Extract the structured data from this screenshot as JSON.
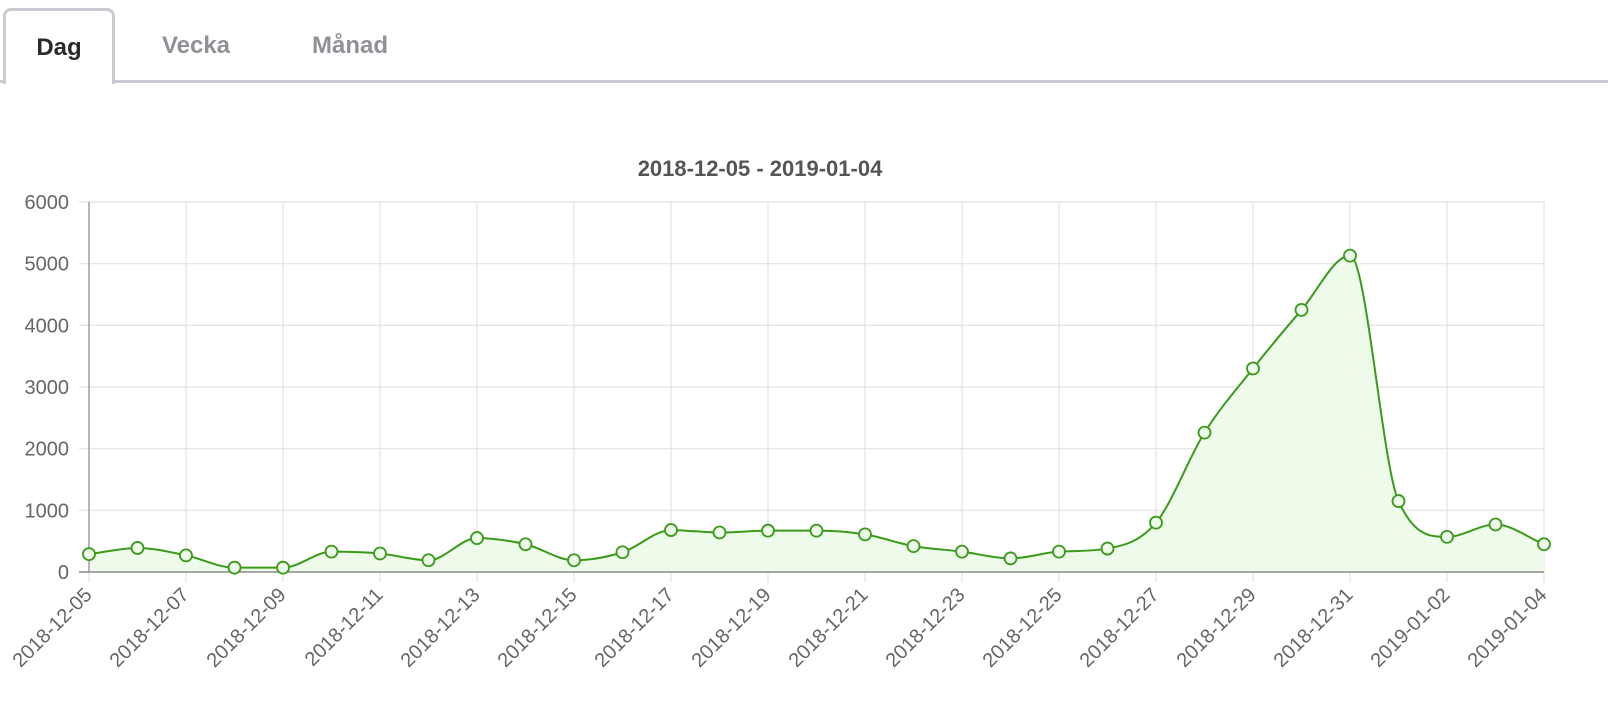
{
  "tabs": [
    {
      "label": "Dag",
      "active": true
    },
    {
      "label": "Vecka",
      "active": false
    },
    {
      "label": "Månad",
      "active": false
    }
  ],
  "colors": {
    "line": "#3a9a1a",
    "fill": "#eefbea",
    "grid": "#e2e2e2",
    "axis": "#8a8a8a"
  },
  "chart_data": {
    "type": "area",
    "title": "2018-12-05  - 2019-01-04",
    "xlabel": "",
    "ylabel": "",
    "ylim": [
      0,
      6000
    ],
    "yticks": [
      "0",
      "1000",
      "2000",
      "3000",
      "4000",
      "5000",
      "6000"
    ],
    "x": [
      "2018-12-05",
      "2018-12-06",
      "2018-12-07",
      "2018-12-08",
      "2018-12-09",
      "2018-12-10",
      "2018-12-11",
      "2018-12-12",
      "2018-12-13",
      "2018-12-14",
      "2018-12-15",
      "2018-12-16",
      "2018-12-17",
      "2018-12-18",
      "2018-12-19",
      "2018-12-20",
      "2018-12-21",
      "2018-12-22",
      "2018-12-23",
      "2018-12-24",
      "2018-12-25",
      "2018-12-26",
      "2018-12-27",
      "2018-12-28",
      "2018-12-29",
      "2018-12-30",
      "2018-12-31",
      "2019-01-01",
      "2019-01-02",
      "2019-01-03",
      "2019-01-04"
    ],
    "xticks": [
      "2018-12-05",
      "2018-12-07",
      "2018-12-09",
      "2018-12-11",
      "2018-12-13",
      "2018-12-15",
      "2018-12-17",
      "2018-12-19",
      "2018-12-21",
      "2018-12-23",
      "2018-12-25",
      "2018-12-27",
      "2018-12-29",
      "2018-12-31",
      "2019-01-02",
      "2019-01-04"
    ],
    "series": [
      {
        "values": [
          290,
          390,
          270,
          70,
          70,
          330,
          300,
          190,
          550,
          450,
          190,
          320,
          680,
          640,
          670,
          670,
          610,
          420,
          330,
          220,
          330,
          380,
          800,
          2260,
          3300,
          4250,
          5130,
          1150,
          570,
          770,
          450
        ]
      }
    ],
    "grid": true,
    "legend": "none"
  }
}
